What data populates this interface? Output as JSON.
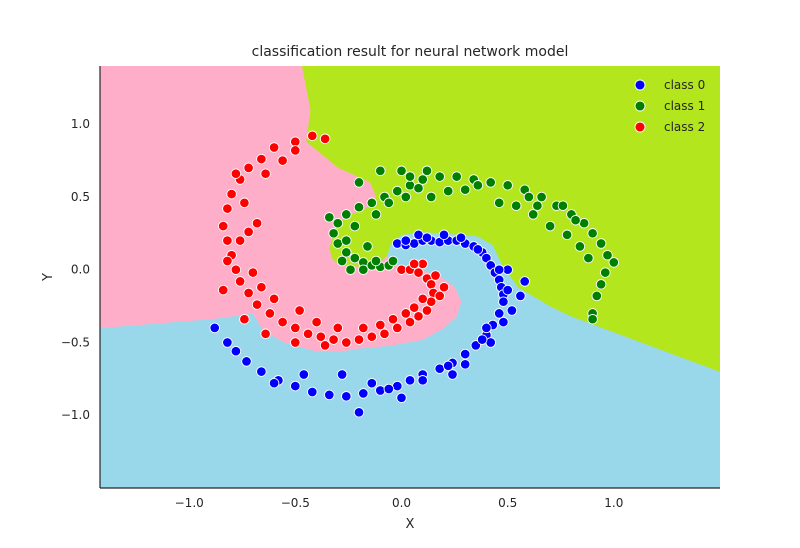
{
  "chart_data": {
    "type": "scatter",
    "title": "classification result for neural network model",
    "xlabel": "X",
    "ylabel": "Y",
    "xlim": [
      -1.42,
      1.5
    ],
    "ylim": [
      -1.5,
      1.4
    ],
    "xticks": [
      -1.0,
      -0.5,
      0.0,
      0.5,
      1.0
    ],
    "xtick_labels": [
      "−1.0",
      "−0.5",
      "0.0",
      "0.5",
      "1.0"
    ],
    "yticks": [
      -1.0,
      -0.5,
      0.0,
      0.5,
      1.0
    ],
    "ytick_labels": [
      "−1.0",
      "−0.5",
      "0.0",
      "0.5",
      "1.0"
    ],
    "grid": false,
    "legend_position": "top-right",
    "background_regions": [
      {
        "class": "class 0",
        "color": "#99d8ea",
        "polygon": [
          [
            -1.42,
            -1.5
          ],
          [
            1.5,
            -1.5
          ],
          [
            1.5,
            -0.7
          ],
          [
            0.8,
            -0.32
          ],
          [
            0.7,
            -0.25
          ],
          [
            0.55,
            -0.12
          ],
          [
            0.48,
            0.02
          ],
          [
            0.43,
            0.17
          ],
          [
            0.36,
            0.23
          ],
          [
            0.3,
            0.24
          ],
          [
            0.2,
            0.25
          ],
          [
            0.1,
            0.26
          ],
          [
            0.0,
            0.24
          ],
          [
            -0.05,
            0.18
          ],
          [
            -0.07,
            0.09
          ],
          [
            -0.02,
            0.03
          ],
          [
            0.05,
            0.0
          ],
          [
            0.1,
            -0.01
          ],
          [
            0.18,
            -0.04
          ],
          [
            0.25,
            -0.12
          ],
          [
            0.28,
            -0.22
          ],
          [
            0.26,
            -0.32
          ],
          [
            0.2,
            -0.4
          ],
          [
            0.1,
            -0.48
          ],
          [
            -0.05,
            -0.52
          ],
          [
            -0.2,
            -0.54
          ],
          [
            -0.28,
            -0.56
          ],
          [
            -0.4,
            -0.56
          ],
          [
            -0.55,
            -0.5
          ],
          [
            -0.65,
            -0.42
          ],
          [
            -0.7,
            -0.3
          ],
          [
            -0.9,
            -0.34
          ],
          [
            -1.0,
            -0.35
          ],
          [
            -1.42,
            -0.4
          ]
        ]
      },
      {
        "class": "class 1",
        "color": "#b4e61d",
        "polygon": [
          [
            -0.47,
            1.4
          ],
          [
            1.5,
            1.4
          ],
          [
            1.5,
            -0.7
          ],
          [
            0.8,
            -0.32
          ],
          [
            0.7,
            -0.25
          ],
          [
            0.55,
            -0.12
          ],
          [
            0.48,
            0.02
          ],
          [
            0.43,
            0.17
          ],
          [
            0.36,
            0.23
          ],
          [
            0.3,
            0.24
          ],
          [
            0.2,
            0.25
          ],
          [
            0.1,
            0.26
          ],
          [
            0.0,
            0.24
          ],
          [
            -0.05,
            0.18
          ],
          [
            -0.07,
            0.09
          ],
          [
            -0.1,
            0.05
          ],
          [
            -0.15,
            0.03
          ],
          [
            -0.2,
            0.02
          ],
          [
            -0.26,
            0.02
          ],
          [
            -0.3,
            0.04
          ],
          [
            -0.33,
            0.08
          ],
          [
            -0.34,
            0.15
          ],
          [
            -0.32,
            0.25
          ],
          [
            -0.3,
            0.32
          ],
          [
            -0.24,
            0.38
          ],
          [
            -0.17,
            0.42
          ],
          [
            -0.12,
            0.5
          ],
          [
            -0.15,
            0.6
          ],
          [
            -0.3,
            0.7
          ],
          [
            -0.45,
            0.88
          ],
          [
            -0.43,
            1.1
          ],
          [
            -0.47,
            1.4
          ]
        ]
      },
      {
        "class": "class 2",
        "color": "#ffaec9",
        "polygon": [
          [
            -1.42,
            1.4
          ],
          [
            -0.47,
            1.4
          ],
          [
            -0.43,
            1.1
          ],
          [
            -0.45,
            0.88
          ],
          [
            -0.3,
            0.7
          ],
          [
            -0.15,
            0.6
          ],
          [
            -0.12,
            0.5
          ],
          [
            -0.17,
            0.42
          ],
          [
            -0.24,
            0.38
          ],
          [
            -0.3,
            0.32
          ],
          [
            -0.32,
            0.25
          ],
          [
            -0.34,
            0.15
          ],
          [
            -0.33,
            0.08
          ],
          [
            -0.3,
            0.04
          ],
          [
            -0.26,
            0.02
          ],
          [
            -0.2,
            0.02
          ],
          [
            -0.15,
            0.03
          ],
          [
            -0.1,
            0.05
          ],
          [
            -0.07,
            0.09
          ],
          [
            -0.02,
            0.03
          ],
          [
            0.05,
            0.0
          ],
          [
            0.1,
            -0.01
          ],
          [
            0.18,
            -0.04
          ],
          [
            0.25,
            -0.12
          ],
          [
            0.28,
            -0.22
          ],
          [
            0.26,
            -0.32
          ],
          [
            0.2,
            -0.4
          ],
          [
            0.1,
            -0.48
          ],
          [
            -0.05,
            -0.52
          ],
          [
            -0.2,
            -0.54
          ],
          [
            -0.28,
            -0.56
          ],
          [
            -0.4,
            -0.56
          ],
          [
            -0.55,
            -0.5
          ],
          [
            -0.65,
            -0.42
          ],
          [
            -0.7,
            -0.3
          ],
          [
            -0.9,
            -0.34
          ],
          [
            -1.0,
            -0.35
          ],
          [
            -1.42,
            -0.4
          ]
        ]
      }
    ],
    "series": [
      {
        "name": "class 0",
        "color": "#0000ff",
        "points": [
          [
            -0.02,
            0.18
          ],
          [
            0.02,
            0.17
          ],
          [
            0.06,
            0.18
          ],
          [
            0.1,
            0.2
          ],
          [
            0.14,
            0.2
          ],
          [
            0.18,
            0.19
          ],
          [
            0.22,
            0.2
          ],
          [
            0.26,
            0.2
          ],
          [
            0.3,
            0.18
          ],
          [
            0.34,
            0.16
          ],
          [
            0.38,
            0.12
          ],
          [
            0.4,
            0.08
          ],
          [
            0.42,
            0.03
          ],
          [
            0.44,
            -0.02
          ],
          [
            0.46,
            -0.07
          ],
          [
            0.47,
            -0.12
          ],
          [
            0.48,
            -0.17
          ],
          [
            0.48,
            -0.22
          ],
          [
            0.46,
            -0.3
          ],
          [
            0.43,
            -0.38
          ],
          [
            0.4,
            -0.45
          ],
          [
            0.35,
            -0.52
          ],
          [
            0.3,
            -0.58
          ],
          [
            0.24,
            -0.64
          ],
          [
            0.18,
            -0.68
          ],
          [
            0.1,
            -0.72
          ],
          [
            0.04,
            -0.76
          ],
          [
            -0.02,
            -0.8
          ],
          [
            -0.1,
            -0.83
          ],
          [
            -0.18,
            -0.85
          ],
          [
            -0.26,
            -0.87
          ],
          [
            -0.34,
            -0.86
          ],
          [
            -0.42,
            -0.84
          ],
          [
            -0.5,
            -0.8
          ],
          [
            -0.58,
            -0.76
          ],
          [
            -0.66,
            -0.7
          ],
          [
            -0.73,
            -0.63
          ],
          [
            -0.78,
            -0.56
          ],
          [
            -0.82,
            -0.5
          ],
          [
            -0.88,
            -0.4
          ],
          [
            0.0,
            -0.88
          ],
          [
            -0.2,
            -0.98
          ],
          [
            0.1,
            -0.76
          ],
          [
            0.24,
            -0.72
          ],
          [
            0.52,
            -0.28
          ],
          [
            0.56,
            -0.18
          ],
          [
            0.58,
            -0.08
          ],
          [
            0.5,
            0.0
          ],
          [
            0.4,
            -0.4
          ],
          [
            0.42,
            -0.5
          ],
          [
            0.3,
            -0.65
          ],
          [
            -0.28,
            -0.72
          ],
          [
            -0.46,
            -0.72
          ],
          [
            -0.6,
            -0.78
          ],
          [
            0.02,
            0.2
          ],
          [
            0.08,
            0.24
          ],
          [
            0.12,
            0.22
          ],
          [
            0.2,
            0.24
          ],
          [
            0.28,
            0.22
          ],
          [
            0.36,
            0.14
          ],
          [
            0.46,
            0.0
          ],
          [
            0.5,
            -0.14
          ],
          [
            0.48,
            -0.36
          ],
          [
            0.38,
            -0.48
          ],
          [
            0.22,
            -0.66
          ],
          [
            -0.06,
            -0.82
          ],
          [
            -0.14,
            -0.78
          ]
        ]
      },
      {
        "name": "class 1",
        "color": "#008000",
        "points": [
          [
            -0.18,
            0.05
          ],
          [
            -0.14,
            0.03
          ],
          [
            -0.1,
            0.02
          ],
          [
            -0.06,
            0.03
          ],
          [
            -0.22,
            0.08
          ],
          [
            -0.26,
            0.12
          ],
          [
            -0.3,
            0.18
          ],
          [
            -0.32,
            0.25
          ],
          [
            -0.3,
            0.32
          ],
          [
            -0.26,
            0.38
          ],
          [
            -0.2,
            0.43
          ],
          [
            -0.14,
            0.46
          ],
          [
            -0.08,
            0.5
          ],
          [
            -0.02,
            0.54
          ],
          [
            0.04,
            0.58
          ],
          [
            0.1,
            0.62
          ],
          [
            0.18,
            0.64
          ],
          [
            0.26,
            0.64
          ],
          [
            0.34,
            0.62
          ],
          [
            0.42,
            0.6
          ],
          [
            0.5,
            0.58
          ],
          [
            0.58,
            0.55
          ],
          [
            0.66,
            0.5
          ],
          [
            0.73,
            0.44
          ],
          [
            0.8,
            0.38
          ],
          [
            0.86,
            0.32
          ],
          [
            0.9,
            0.25
          ],
          [
            0.94,
            0.18
          ],
          [
            0.97,
            0.1
          ],
          [
            1.0,
            0.05
          ],
          [
            0.94,
            -0.1
          ],
          [
            0.92,
            -0.18
          ],
          [
            0.9,
            -0.3
          ],
          [
            0.9,
            -0.34
          ],
          [
            -0.34,
            0.36
          ],
          [
            -0.2,
            0.6
          ],
          [
            -0.1,
            0.68
          ],
          [
            0.0,
            0.68
          ],
          [
            0.08,
            0.56
          ],
          [
            0.14,
            0.5
          ],
          [
            0.22,
            0.54
          ],
          [
            0.3,
            0.55
          ],
          [
            0.46,
            0.46
          ],
          [
            0.54,
            0.44
          ],
          [
            0.62,
            0.38
          ],
          [
            0.7,
            0.3
          ],
          [
            0.78,
            0.24
          ],
          [
            0.84,
            0.16
          ],
          [
            0.88,
            0.08
          ],
          [
            0.96,
            -0.02
          ],
          [
            -0.22,
            0.3
          ],
          [
            -0.26,
            0.2
          ],
          [
            -0.28,
            0.06
          ],
          [
            -0.24,
            0.0
          ],
          [
            -0.18,
            0.0
          ],
          [
            -0.12,
            0.06
          ],
          [
            -0.04,
            0.06
          ],
          [
            -0.16,
            0.16
          ],
          [
            -0.12,
            0.38
          ],
          [
            -0.06,
            0.46
          ],
          [
            0.02,
            0.5
          ],
          [
            0.04,
            0.64
          ],
          [
            0.12,
            0.68
          ],
          [
            0.36,
            0.58
          ],
          [
            0.6,
            0.5
          ],
          [
            0.64,
            0.44
          ],
          [
            0.76,
            0.44
          ],
          [
            0.82,
            0.34
          ]
        ]
      },
      {
        "name": "class 2",
        "color": "#ff0000",
        "points": [
          [
            0.0,
            0.0
          ],
          [
            0.04,
            0.0
          ],
          [
            0.08,
            -0.02
          ],
          [
            0.12,
            -0.06
          ],
          [
            0.14,
            -0.1
          ],
          [
            0.15,
            -0.16
          ],
          [
            0.14,
            -0.22
          ],
          [
            0.12,
            -0.28
          ],
          [
            0.08,
            -0.32
          ],
          [
            0.04,
            -0.36
          ],
          [
            -0.02,
            -0.4
          ],
          [
            -0.08,
            -0.44
          ],
          [
            -0.14,
            -0.46
          ],
          [
            -0.2,
            -0.48
          ],
          [
            -0.26,
            -0.5
          ],
          [
            -0.32,
            -0.48
          ],
          [
            -0.38,
            -0.46
          ],
          [
            -0.44,
            -0.44
          ],
          [
            -0.5,
            -0.4
          ],
          [
            -0.56,
            -0.36
          ],
          [
            -0.62,
            -0.3
          ],
          [
            -0.68,
            -0.24
          ],
          [
            -0.72,
            -0.16
          ],
          [
            -0.76,
            -0.08
          ],
          [
            -0.78,
            0.0
          ],
          [
            -0.8,
            0.1
          ],
          [
            -0.82,
            0.2
          ],
          [
            -0.84,
            0.3
          ],
          [
            -0.82,
            0.42
          ],
          [
            -0.8,
            0.52
          ],
          [
            -0.76,
            0.62
          ],
          [
            -0.72,
            0.7
          ],
          [
            -0.66,
            0.76
          ],
          [
            -0.6,
            0.84
          ],
          [
            -0.5,
            0.88
          ],
          [
            -0.42,
            0.92
          ],
          [
            -0.36,
            0.9
          ],
          [
            -0.74,
            0.46
          ],
          [
            -0.78,
            0.66
          ],
          [
            -0.64,
            0.66
          ],
          [
            -0.56,
            0.75
          ],
          [
            -0.5,
            0.82
          ],
          [
            -0.72,
            0.26
          ],
          [
            -0.68,
            0.32
          ],
          [
            -0.76,
            0.2
          ],
          [
            -0.7,
            -0.02
          ],
          [
            -0.66,
            -0.12
          ],
          [
            -0.6,
            -0.2
          ],
          [
            -0.48,
            -0.28
          ],
          [
            -0.4,
            -0.36
          ],
          [
            -0.3,
            -0.4
          ],
          [
            -0.18,
            -0.4
          ],
          [
            -0.1,
            -0.38
          ],
          [
            -0.04,
            -0.34
          ],
          [
            0.02,
            -0.3
          ],
          [
            0.06,
            -0.26
          ],
          [
            0.1,
            -0.2
          ],
          [
            0.18,
            -0.18
          ],
          [
            0.2,
            -0.12
          ],
          [
            0.16,
            -0.04
          ],
          [
            0.1,
            0.04
          ],
          [
            0.06,
            0.04
          ],
          [
            -0.36,
            -0.52
          ],
          [
            -0.5,
            -0.5
          ],
          [
            -0.64,
            -0.44
          ],
          [
            -0.74,
            -0.34
          ],
          [
            -0.84,
            -0.14
          ],
          [
            -0.82,
            0.06
          ]
        ]
      }
    ]
  }
}
